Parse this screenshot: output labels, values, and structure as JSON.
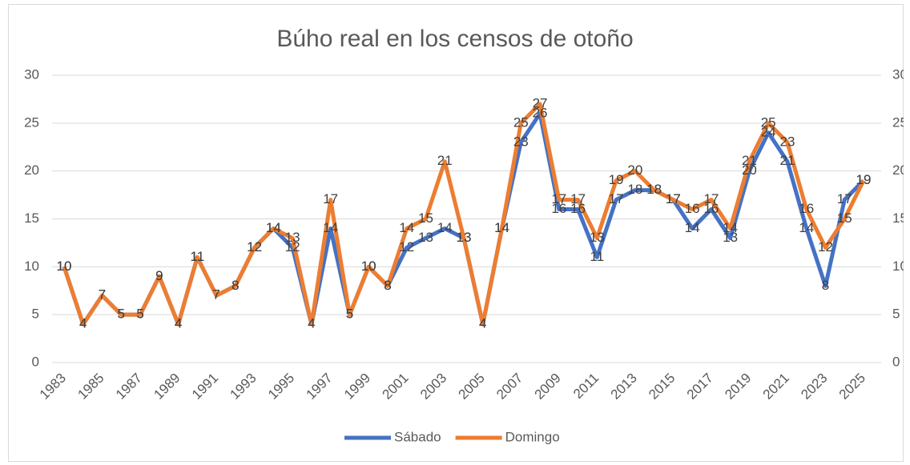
{
  "chart_data": {
    "type": "line",
    "title": "Búho real en los censos de otoño",
    "categories": [
      "1983",
      null,
      "1985",
      null,
      "1987",
      null,
      "1989",
      null,
      "1991",
      null,
      "1993",
      null,
      "1995",
      null,
      "1997",
      null,
      "1999",
      null,
      "2001",
      null,
      "2003",
      null,
      "2005",
      null,
      "2007",
      null,
      "2009",
      null,
      "2011",
      null,
      "2013",
      null,
      "2015",
      null,
      "2017",
      null,
      "2019",
      null,
      "2021",
      null,
      "2023",
      null,
      "2025"
    ],
    "series": [
      {
        "name": "Sábado",
        "color": "#4472c4",
        "values": [
          10,
          4,
          7,
          5,
          5,
          9,
          4,
          11,
          7,
          8,
          12,
          14,
          12,
          4,
          14,
          5,
          10,
          8,
          12,
          13,
          14,
          13,
          4,
          14,
          23,
          26,
          16,
          16,
          11,
          17,
          18,
          18,
          17,
          14,
          16,
          13,
          20,
          24,
          21,
          14,
          8,
          17,
          19
        ]
      },
      {
        "name": "Domingo",
        "color": "#ed7d31",
        "values": [
          10,
          4,
          7,
          5,
          5,
          9,
          4,
          11,
          7,
          8,
          12,
          14,
          13,
          4,
          17,
          5,
          10,
          8,
          14,
          15,
          21,
          13,
          4,
          14,
          25,
          27,
          17,
          17,
          13,
          19,
          20,
          18,
          17,
          16,
          17,
          14,
          21,
          25,
          23,
          16,
          12,
          15,
          19
        ]
      }
    ],
    "ylim": [
      0,
      30
    ],
    "yticks": [
      0,
      5,
      10,
      15,
      20,
      25,
      30
    ],
    "y2lim": [
      0,
      30
    ],
    "y2ticks": [
      0,
      5,
      10,
      15,
      20,
      25,
      30
    ],
    "grid": true,
    "legend": "bottom"
  }
}
